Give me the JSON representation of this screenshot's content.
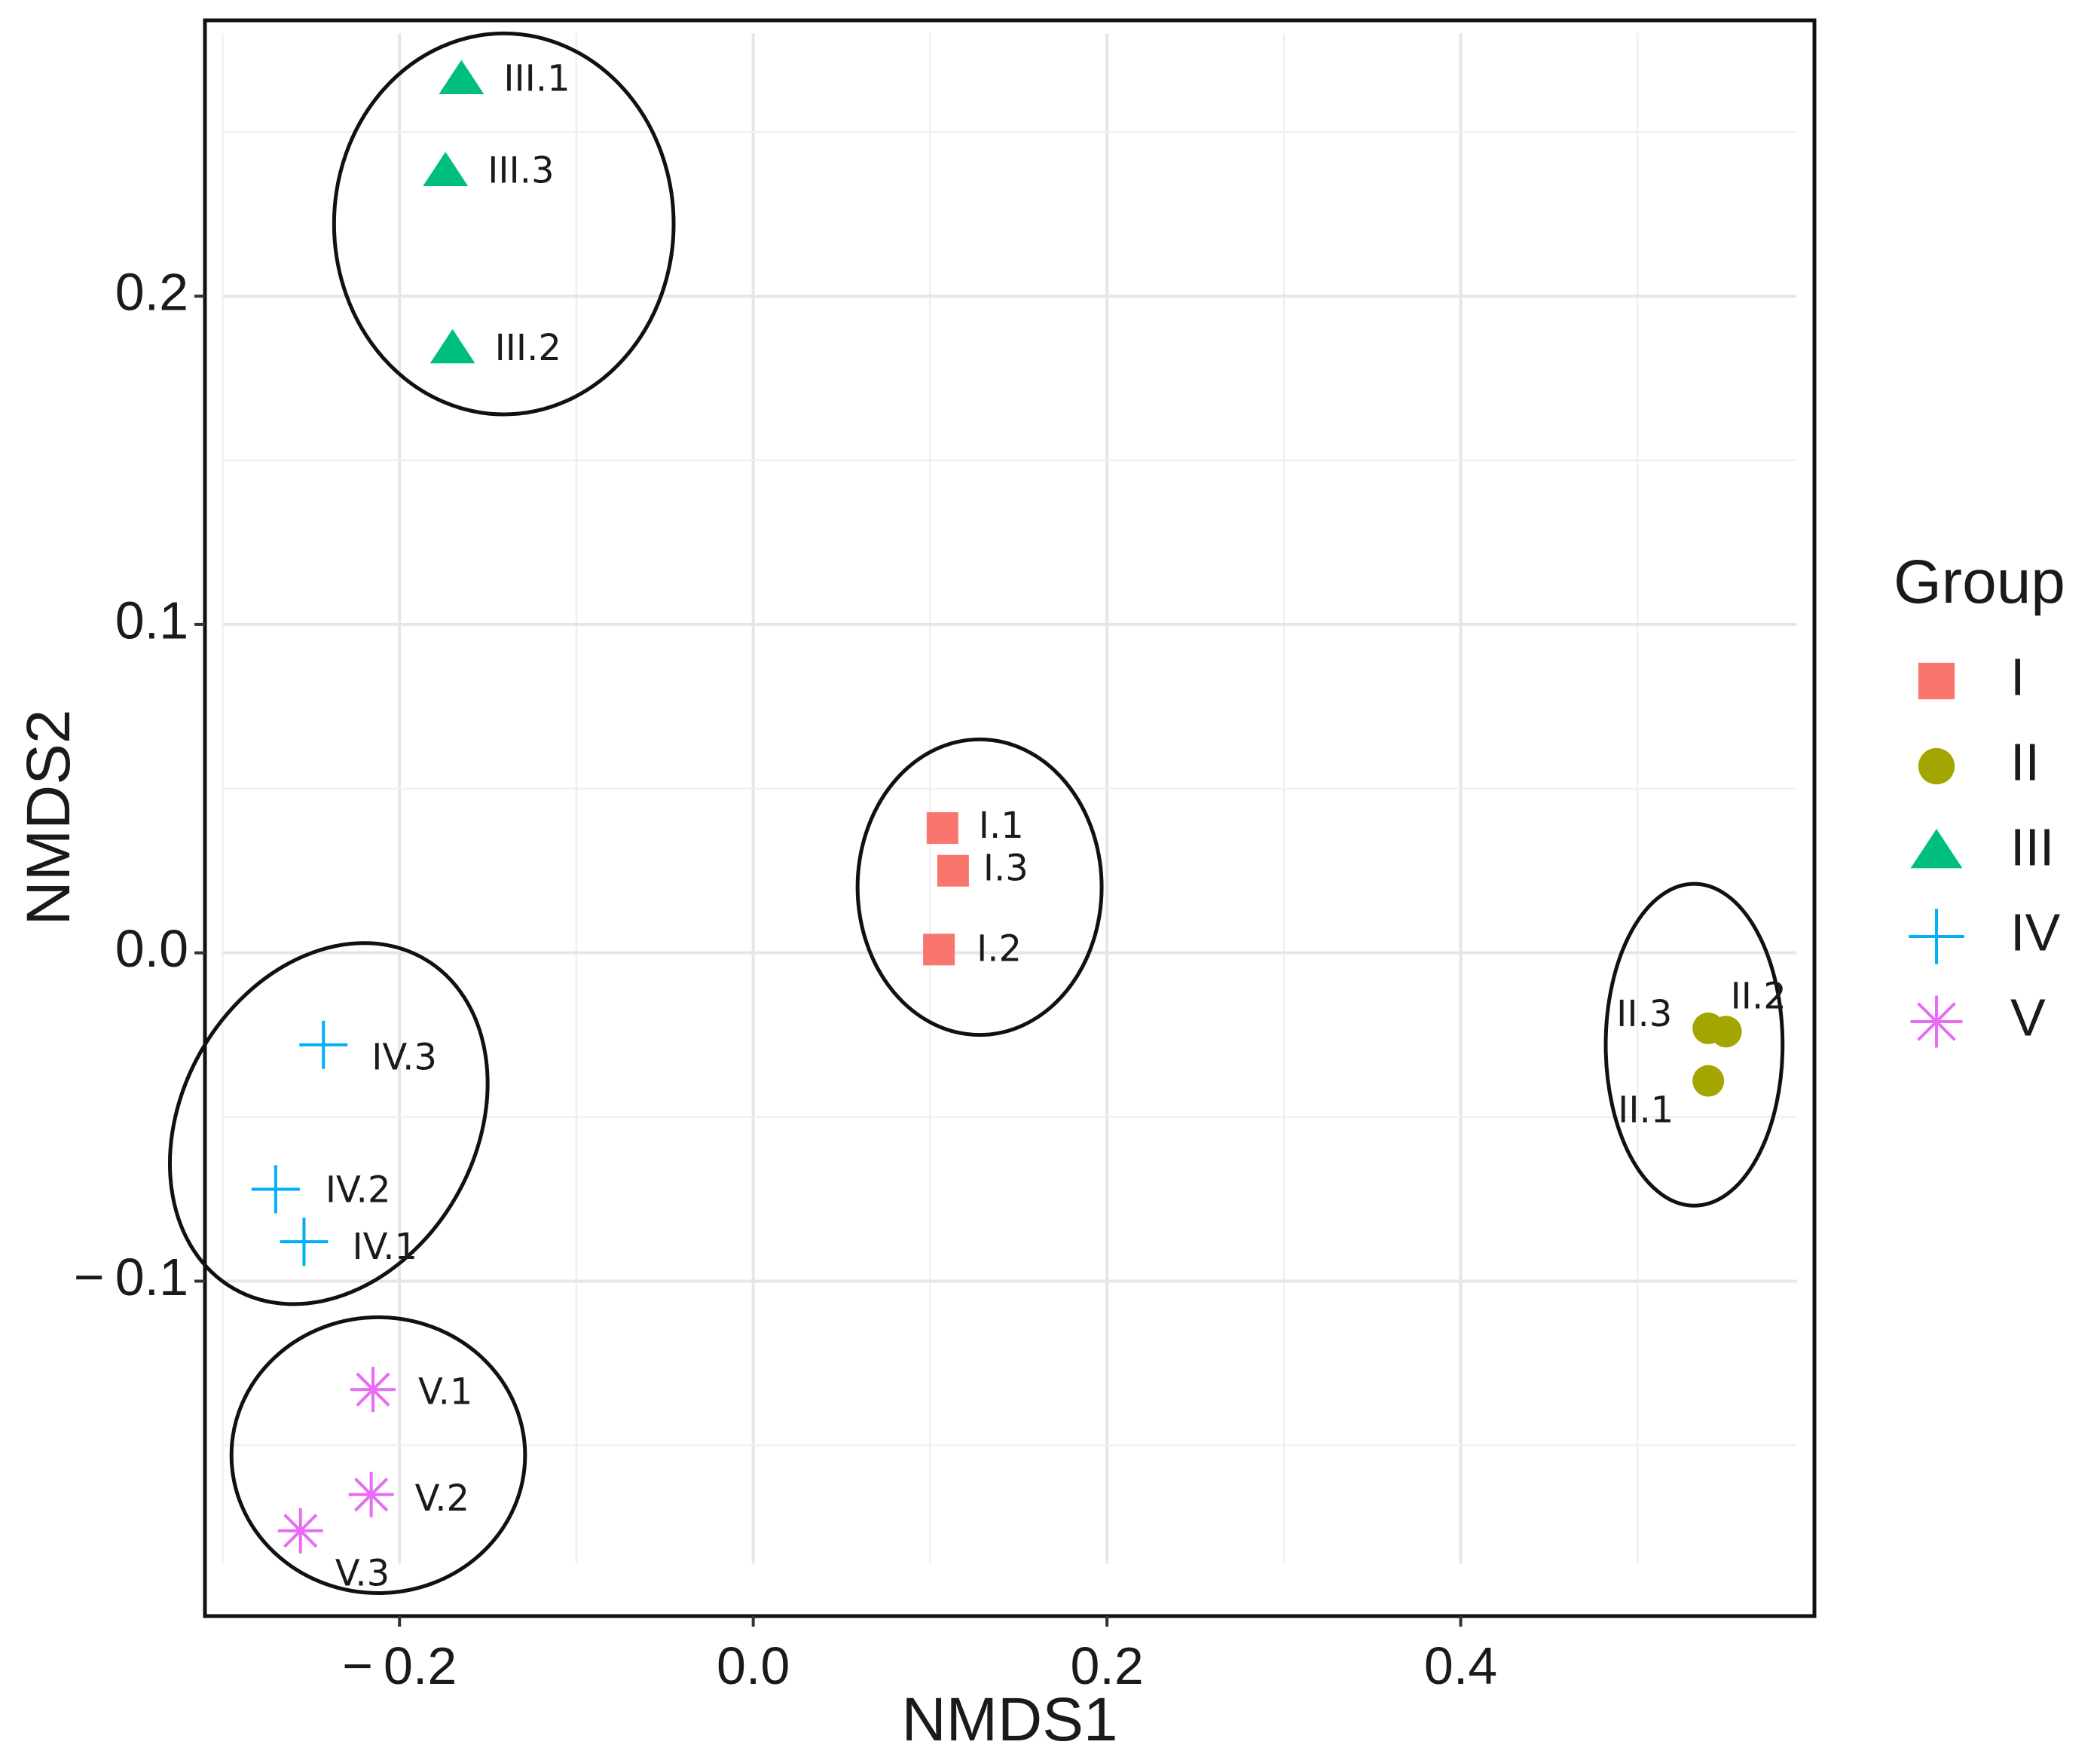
{
  "chart_data": {
    "type": "scatter",
    "xlabel": "NMDS1",
    "ylabel": "NMDS2",
    "xlim": [
      -0.31,
      0.6
    ],
    "ylim": [
      -0.202,
      0.284
    ],
    "x_ticks": [
      -0.2,
      0.0,
      0.2,
      0.4
    ],
    "x_tick_labels": [
      "− 0.2",
      "0.0",
      "0.2",
      "0.4"
    ],
    "y_ticks": [
      -0.1,
      0.0,
      0.1,
      0.2
    ],
    "y_tick_labels": [
      "− 0.1",
      "0.0",
      "0.1",
      "0.2"
    ],
    "grid": true,
    "legend": {
      "title": "Group",
      "position": "right"
    },
    "series": [
      {
        "name": "I",
        "color": "#F8766D",
        "shape": "square",
        "points": [
          {
            "label": "I.1",
            "x": 0.107,
            "y": 0.038
          },
          {
            "label": "I.3",
            "x": 0.113,
            "y": 0.025
          },
          {
            "label": "I.2",
            "x": 0.105,
            "y": 0.001
          }
        ]
      },
      {
        "name": "II",
        "color": "#A3A500",
        "shape": "circle",
        "points": [
          {
            "label": "II.2",
            "x": 0.55,
            "y": -0.024
          },
          {
            "label": "II.3",
            "x": 0.54,
            "y": -0.023
          },
          {
            "label": "II.1",
            "x": 0.54,
            "y": -0.039
          }
        ]
      },
      {
        "name": "III",
        "color": "#00BF7D",
        "shape": "triangle",
        "points": [
          {
            "label": "III.1",
            "x": -0.165,
            "y": 0.266
          },
          {
            "label": "III.3",
            "x": -0.174,
            "y": 0.238
          },
          {
            "label": "III.2",
            "x": -0.17,
            "y": 0.184
          }
        ]
      },
      {
        "name": "IV",
        "color": "#00B0F6",
        "shape": "plus",
        "points": [
          {
            "label": "IV.3",
            "x": -0.243,
            "y": -0.028
          },
          {
            "label": "IV.2",
            "x": -0.27,
            "y": -0.072
          },
          {
            "label": "IV.1",
            "x": -0.254,
            "y": -0.088
          }
        ]
      },
      {
        "name": "V",
        "color": "#E76BF3",
        "shape": "asterisk",
        "points": [
          {
            "label": "V.1",
            "x": -0.215,
            "y": -0.133
          },
          {
            "label": "V.2",
            "x": -0.216,
            "y": -0.165
          },
          {
            "label": "V.3",
            "x": -0.256,
            "y": -0.176
          }
        ]
      }
    ],
    "ellipses": [
      {
        "group": "III",
        "cx": -0.141,
        "cy": 0.222,
        "rx": 0.096,
        "ry": 0.058
      },
      {
        "group": "I",
        "cx": 0.128,
        "cy": 0.02,
        "rx": 0.069,
        "ry": 0.045
      },
      {
        "group": "II",
        "cx": 0.532,
        "cy": -0.028,
        "rx": 0.05,
        "ry": 0.049
      },
      {
        "group": "IV",
        "cx": -0.24,
        "cy": -0.052,
        "rx": 0.083,
        "ry": 0.058,
        "angle": 30
      },
      {
        "group": "V",
        "cx": -0.212,
        "cy": -0.153,
        "rx": 0.083,
        "ry": 0.042
      }
    ]
  }
}
